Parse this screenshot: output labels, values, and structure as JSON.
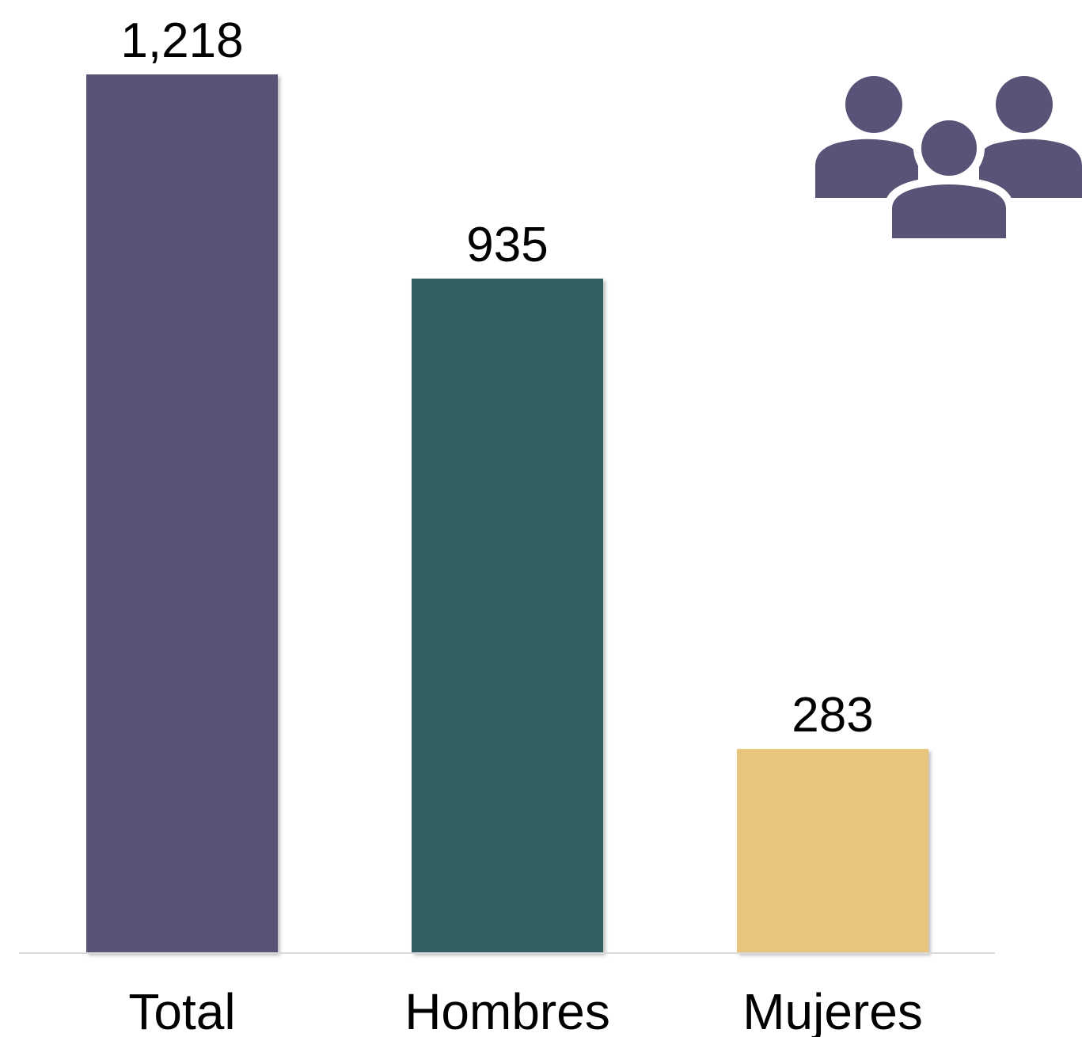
{
  "chart_data": {
    "type": "bar",
    "categories": [
      "Total",
      "Hombres",
      "Mujeres"
    ],
    "values": [
      1218,
      935,
      283
    ],
    "value_labels": [
      "1,218",
      "935",
      "283"
    ],
    "colors": [
      "#5a5277",
      "#336163",
      "#e8c47b"
    ],
    "ylim": [
      0,
      1218
    ],
    "grid": false,
    "legend": "none",
    "title": "",
    "xlabel": "",
    "ylabel": ""
  },
  "icon": {
    "name": "group-people-icon",
    "color": "#5a5277"
  }
}
